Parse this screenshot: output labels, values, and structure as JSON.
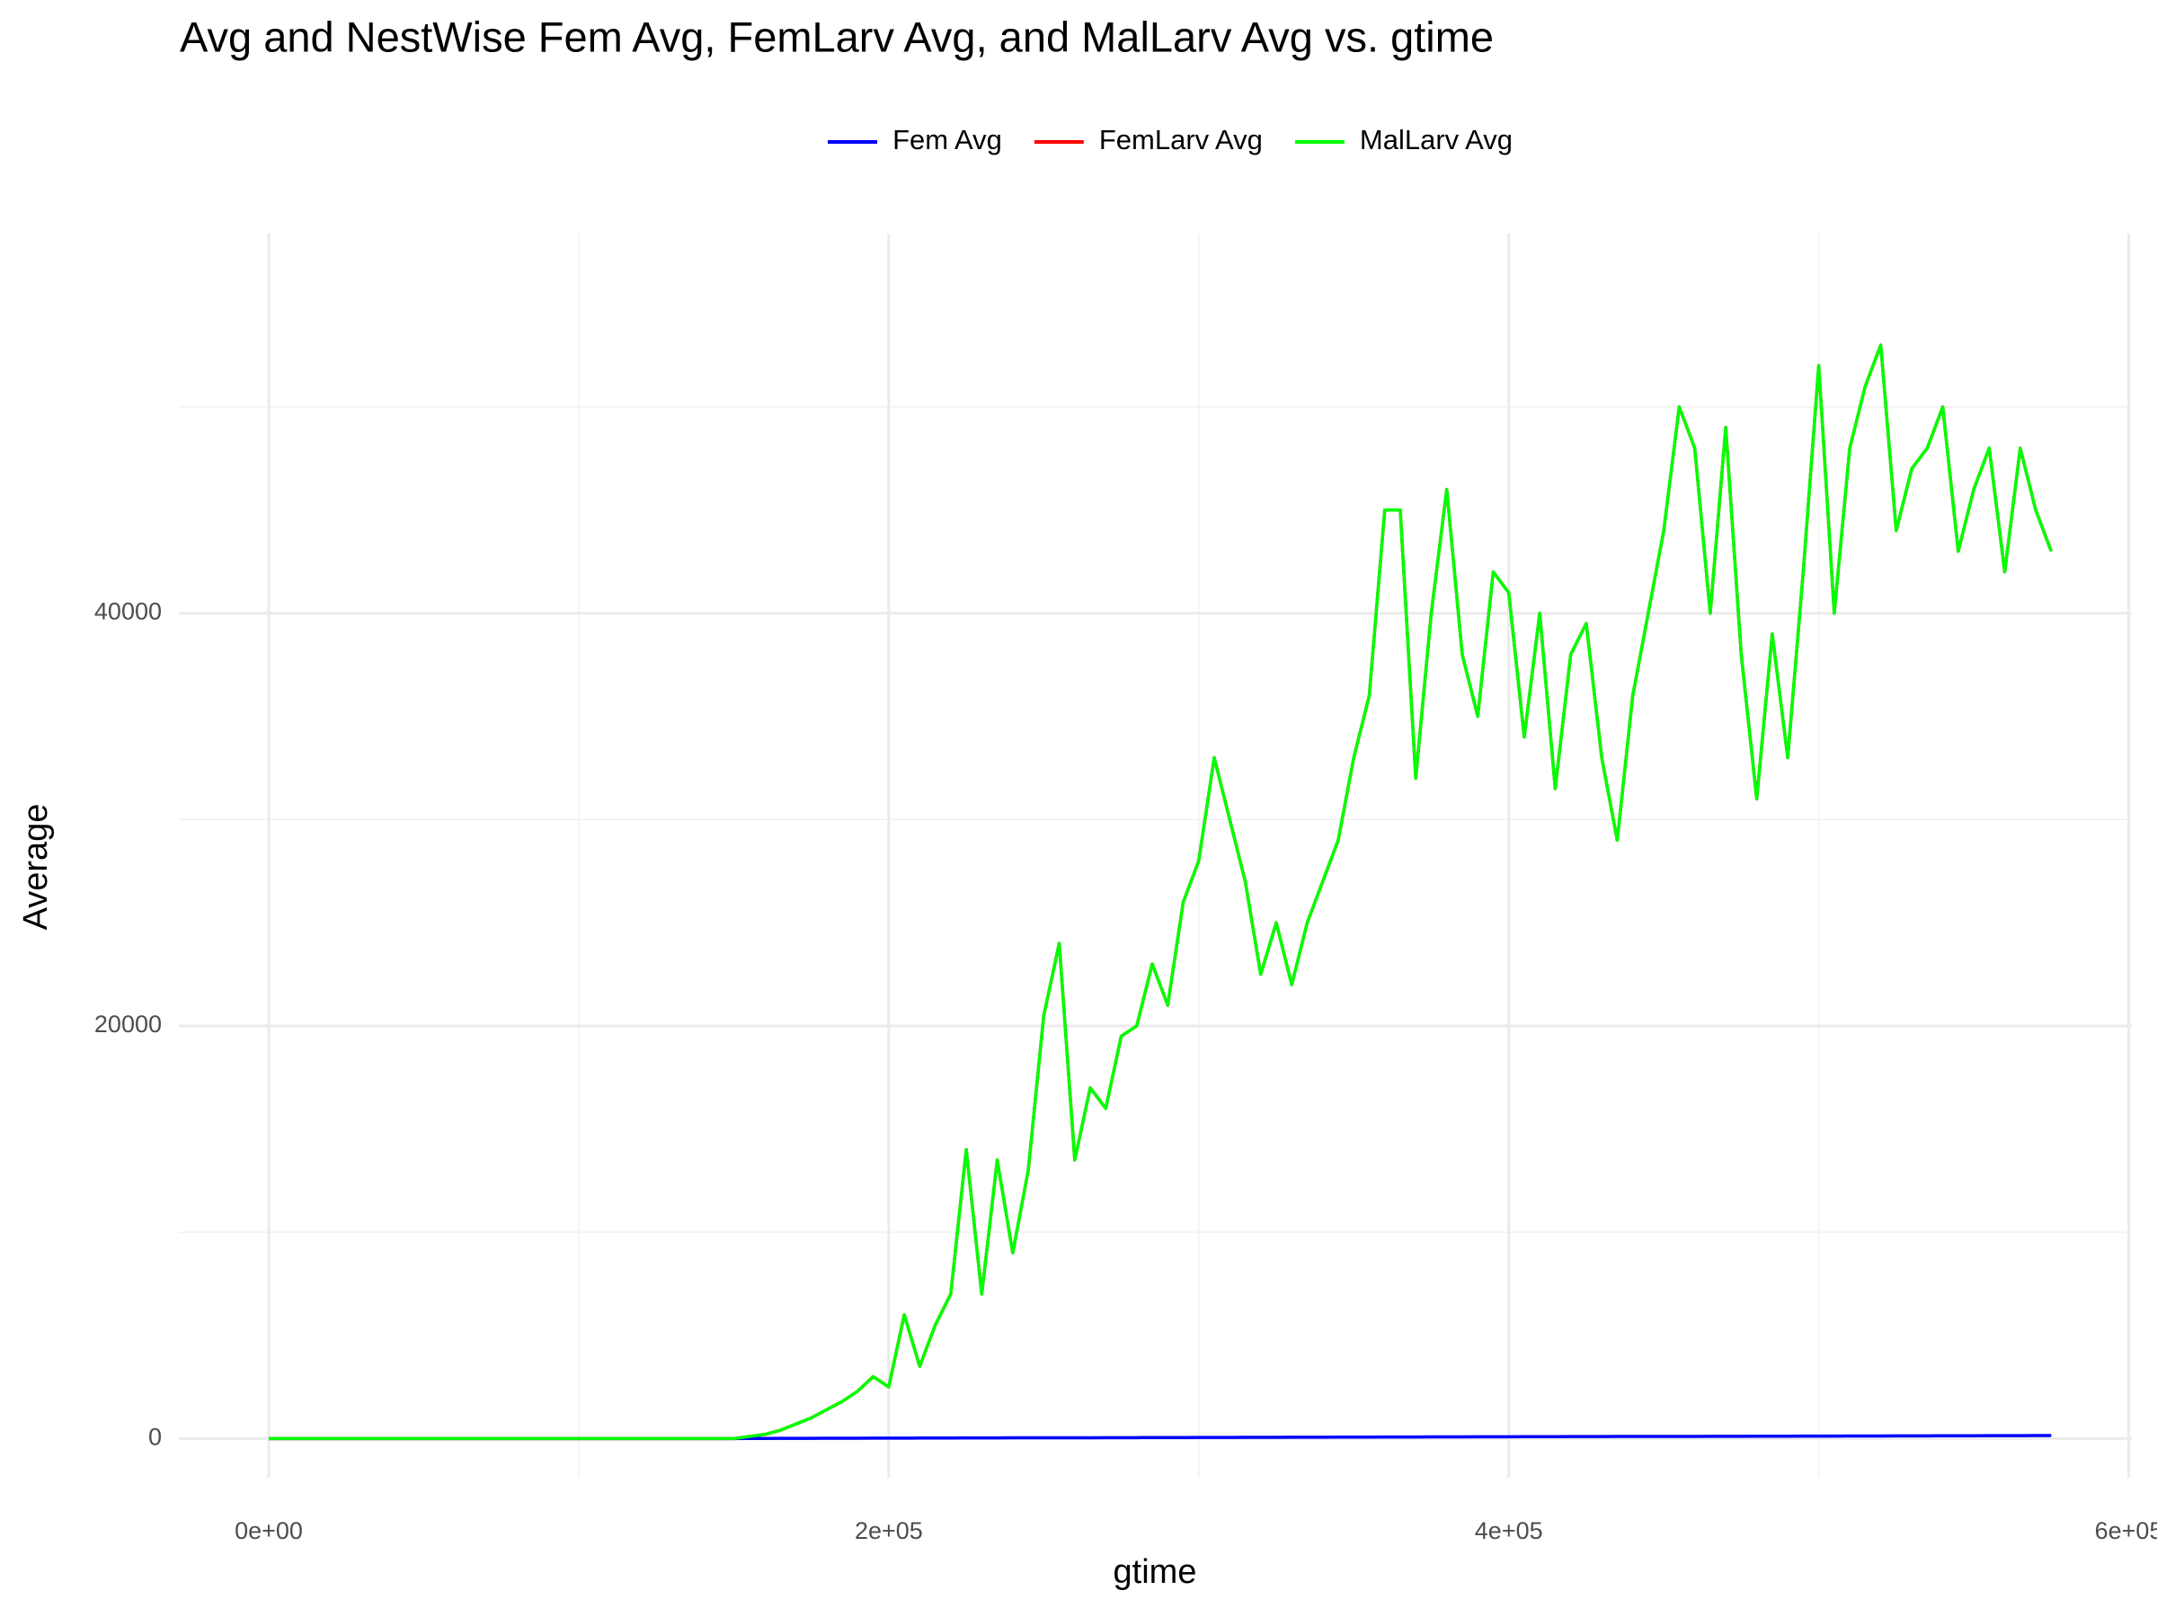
{
  "chart_data": {
    "type": "line",
    "title": "Avg and NestWise Fem Avg, FemLarv Avg, and MalLarv Avg vs. gtime",
    "x_label": "gtime",
    "y_label": "Average",
    "x": [
      0,
      5000,
      10000,
      15000,
      20000,
      25000,
      30000,
      35000,
      40000,
      45000,
      50000,
      55000,
      60000,
      65000,
      70000,
      75000,
      80000,
      85000,
      90000,
      95000,
      100000,
      105000,
      110000,
      115000,
      120000,
      125000,
      130000,
      135000,
      140000,
      145000,
      150000,
      155000,
      160000,
      165000,
      170000,
      175000,
      180000,
      185000,
      190000,
      195000,
      200000,
      205000,
      210000,
      215000,
      220000,
      225000,
      230000,
      235000,
      240000,
      245000,
      250000,
      255000,
      260000,
      265000,
      270000,
      275000,
      280000,
      285000,
      290000,
      295000,
      300000,
      305000,
      310000,
      315000,
      320000,
      325000,
      330000,
      335000,
      340000,
      345000,
      350000,
      355000,
      360000,
      365000,
      370000,
      375000,
      380000,
      385000,
      390000,
      395000,
      400000,
      405000,
      410000,
      415000,
      420000,
      425000,
      430000,
      435000,
      440000,
      445000,
      450000,
      455000,
      460000,
      465000,
      470000,
      475000,
      480000,
      485000,
      490000,
      495000,
      500000,
      505000,
      510000,
      515000,
      520000,
      525000,
      530000,
      535000,
      540000,
      545000,
      550000,
      555000,
      560000,
      565000,
      570000,
      575000
    ],
    "series": [
      {
        "name": "Fem Avg",
        "color": "#0000ff",
        "values": [
          0,
          0,
          0,
          0,
          0,
          0,
          0,
          0,
          0,
          0,
          0,
          0,
          0,
          0,
          0,
          0,
          0,
          0,
          0,
          0,
          0,
          0,
          0,
          0,
          0,
          0,
          0,
          0,
          0,
          0,
          0,
          5,
          5,
          10,
          10,
          10,
          15,
          15,
          15,
          20,
          20,
          20,
          25,
          25,
          25,
          30,
          30,
          30,
          35,
          35,
          35,
          40,
          40,
          40,
          45,
          45,
          45,
          50,
          50,
          50,
          55,
          55,
          55,
          60,
          60,
          60,
          65,
          65,
          65,
          70,
          70,
          70,
          75,
          75,
          75,
          80,
          80,
          80,
          85,
          85,
          85,
          90,
          90,
          90,
          95,
          95,
          95,
          100,
          100,
          100,
          105,
          105,
          105,
          110,
          110,
          110,
          115,
          115,
          115,
          120,
          120,
          120,
          125,
          125,
          125,
          130,
          130,
          130,
          135,
          135,
          135,
          140,
          140,
          140,
          145,
          145
        ]
      },
      {
        "name": "FemLarv Avg",
        "color": "#ff0000",
        "values": [
          0,
          0,
          0,
          0,
          0,
          0,
          0,
          0,
          0,
          0,
          0,
          0,
          0,
          0,
          0,
          0,
          0,
          0,
          0,
          0,
          0,
          0,
          0,
          0,
          0,
          0,
          0,
          0,
          0,
          0,
          0,
          100,
          200,
          400,
          700,
          1000,
          1400,
          1800,
          2300,
          3000,
          2500,
          6000,
          3500,
          5500,
          7000,
          14000,
          7000,
          13500,
          9000,
          13000,
          20500,
          24000,
          13500,
          17000,
          16000,
          19500,
          20000,
          23000,
          21000,
          26000,
          28000,
          33000,
          30000,
          27000,
          22500,
          25000,
          22000,
          25000,
          27000,
          29000,
          33000,
          36000,
          45000,
          45000,
          32000,
          40000,
          46000,
          38000,
          35000,
          42000,
          41000,
          34000,
          40000,
          31500,
          38000,
          39500,
          33000,
          29000,
          36000,
          40000,
          44000,
          50000,
          48000,
          40000,
          49000,
          38000,
          31000,
          39000,
          33000,
          42000,
          52000,
          40000,
          48000,
          51000,
          53000,
          44000,
          47000,
          48000,
          50000,
          43000,
          46000,
          48000,
          42000,
          48000,
          45000,
          43000
        ]
      },
      {
        "name": "MalLarv Avg",
        "color": "#00ff00",
        "values": [
          0,
          0,
          0,
          0,
          0,
          0,
          0,
          0,
          0,
          0,
          0,
          0,
          0,
          0,
          0,
          0,
          0,
          0,
          0,
          0,
          0,
          0,
          0,
          0,
          0,
          0,
          0,
          0,
          0,
          0,
          0,
          100,
          200,
          400,
          700,
          1000,
          1400,
          1800,
          2300,
          3000,
          2500,
          6000,
          3500,
          5500,
          7000,
          14000,
          7000,
          13500,
          9000,
          13000,
          20500,
          24000,
          13500,
          17000,
          16000,
          19500,
          20000,
          23000,
          21000,
          26000,
          28000,
          33000,
          30000,
          27000,
          22500,
          25000,
          22000,
          25000,
          27000,
          29000,
          33000,
          36000,
          45000,
          45000,
          32000,
          40000,
          46000,
          38000,
          35000,
          42000,
          41000,
          34000,
          40000,
          31500,
          38000,
          39500,
          33000,
          29000,
          36000,
          40000,
          44000,
          50000,
          48000,
          40000,
          49000,
          38000,
          31000,
          39000,
          33000,
          42000,
          52000,
          40000,
          48000,
          51000,
          53000,
          44000,
          47000,
          48000,
          50000,
          43000,
          46000,
          48000,
          42000,
          48000,
          45000,
          43000
        ]
      }
    ],
    "xlim": [
      -29000,
      601000
    ],
    "ylim": [
      -1900,
      58400
    ],
    "xticks": [
      {
        "value": 0,
        "label": "0e+00"
      },
      {
        "value": 200000,
        "label": "2e+05"
      },
      {
        "value": 400000,
        "label": "4e+05"
      },
      {
        "value": 600000,
        "label": "6e+05"
      }
    ],
    "yticks": [
      0,
      20000,
      40000
    ],
    "grid": true,
    "legend": "top"
  }
}
